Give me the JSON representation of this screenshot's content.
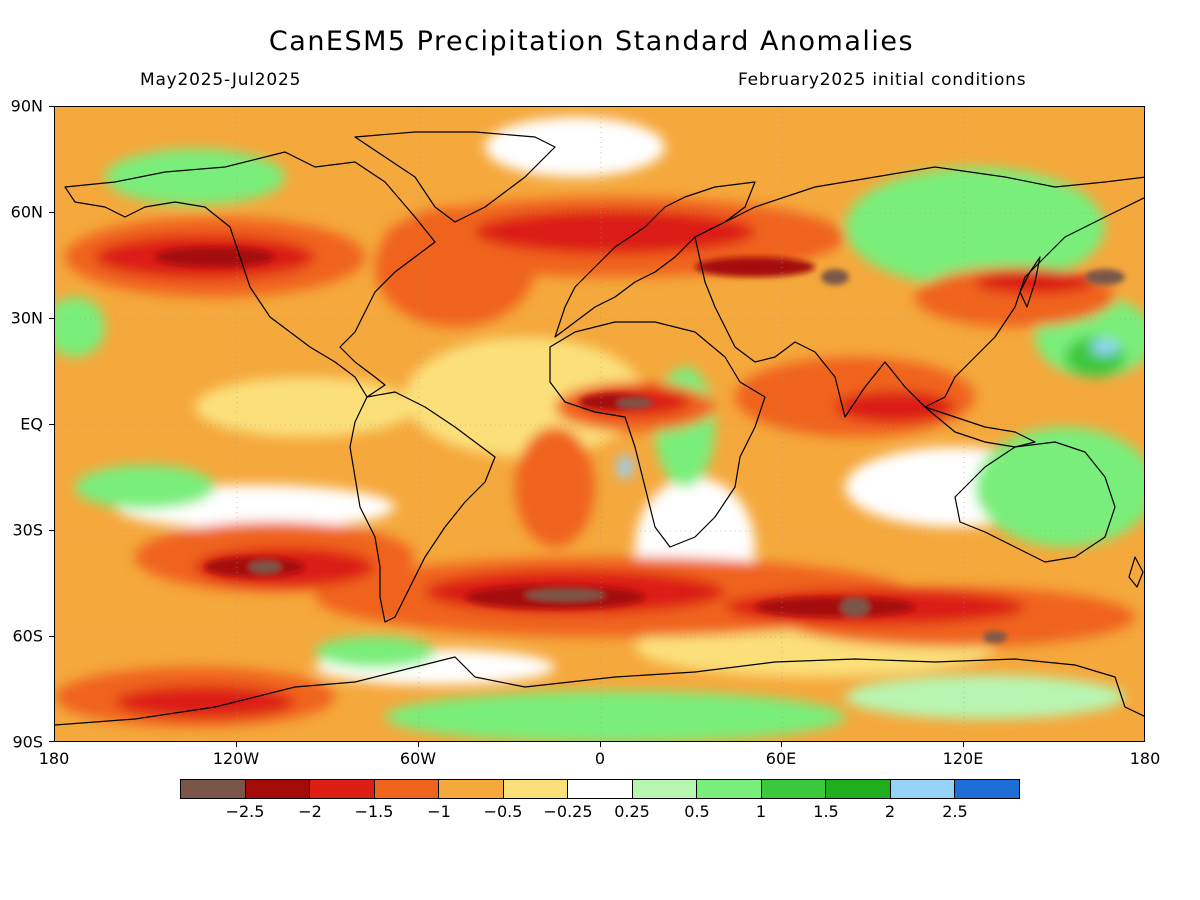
{
  "header": {
    "title": "CanESM5 Precipitation Standard Anomalies",
    "period": "May2025-Jul2025",
    "initial_conditions": "February2025 initial conditions"
  },
  "map": {
    "projection": "cylindrical equidistant",
    "lon_range": [
      -180,
      180
    ],
    "lat_range": [
      -90,
      90
    ],
    "lat_labels": [
      "90N",
      "60N",
      "30N",
      "EQ",
      "30S",
      "60S",
      "90S"
    ],
    "lon_labels": [
      "180",
      "120W",
      "60W",
      "0",
      "60E",
      "120E",
      "180"
    ],
    "coastlines": "black outline"
  },
  "colorbar": {
    "labels": [
      "-2.5",
      "-2",
      "-1.5",
      "-1",
      "-0.5",
      "-0.25",
      "0.25",
      "0.5",
      "1",
      "1.5",
      "2",
      "2.5"
    ],
    "colors": [
      "#7a5648",
      "#a50a0a",
      "#dc1e14",
      "#f0641e",
      "#f5a83c",
      "#fbe07a",
      "#ffffff",
      "#b8f5b0",
      "#7aee7a",
      "#3cc83c",
      "#1eae1e",
      "#96d2fa",
      "#1e6ed8"
    ]
  },
  "chart_data": {
    "type": "heatmap",
    "title": "CanESM5 Precipitation Standard Anomalies",
    "xlabel": "",
    "ylabel": "",
    "xlim": [
      -180,
      180
    ],
    "ylim": [
      -90,
      90
    ],
    "colorscale_levels": [
      -2.5,
      -2,
      -1.5,
      -1,
      -0.5,
      -0.25,
      0.25,
      0.5,
      1,
      1.5,
      2,
      2.5
    ]
  }
}
